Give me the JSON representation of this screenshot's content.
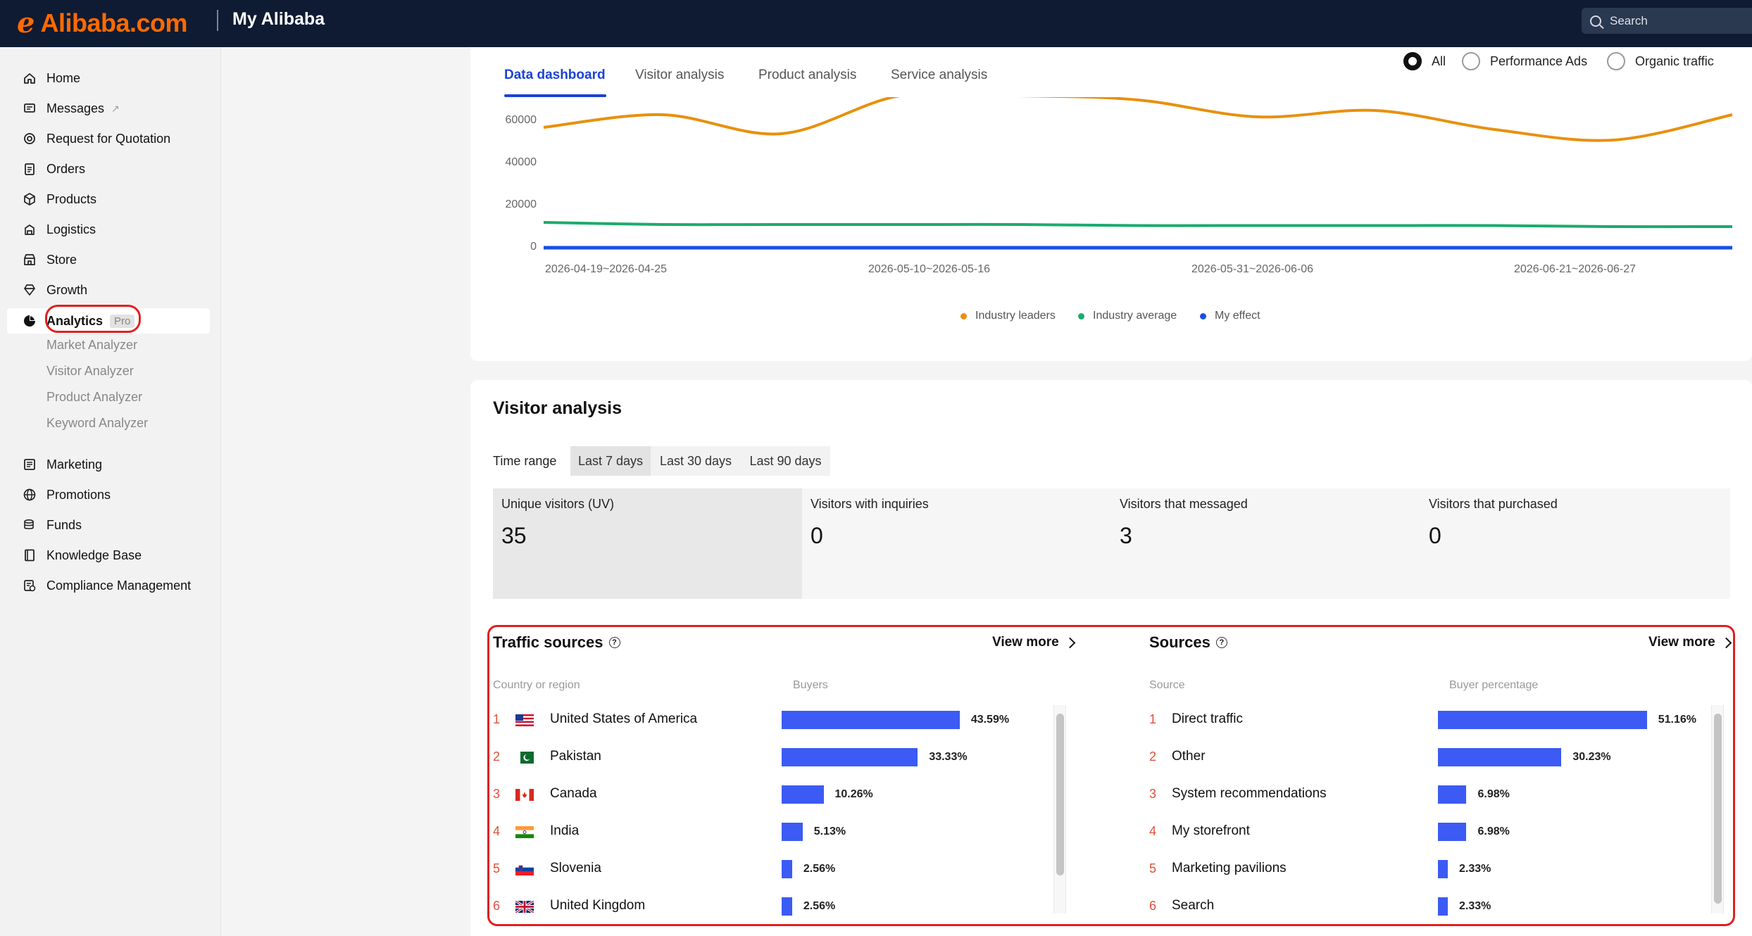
{
  "header": {
    "logo": "Alibaba.com",
    "title": "My Alibaba",
    "search_placeholder": "Search"
  },
  "sidebar": {
    "items": [
      {
        "label": "Home",
        "icon": "home-icon"
      },
      {
        "label": "Messages",
        "icon": "message-icon",
        "external": "↗"
      },
      {
        "label": "Request for Quotation",
        "icon": "target-icon"
      },
      {
        "label": "Orders",
        "icon": "clipboard-icon"
      },
      {
        "label": "Products",
        "icon": "box-icon"
      },
      {
        "label": "Logistics",
        "icon": "truck-icon"
      },
      {
        "label": "Store",
        "icon": "store-icon"
      },
      {
        "label": "Growth",
        "icon": "diamond-icon"
      },
      {
        "label": "Analytics",
        "icon": "pie-chart-icon",
        "badge": "Pro",
        "active": true
      },
      {
        "label": "Marketing",
        "icon": "marketing-icon"
      },
      {
        "label": "Promotions",
        "icon": "globe-icon"
      },
      {
        "label": "Funds",
        "icon": "coins-icon"
      },
      {
        "label": "Knowledge Base",
        "icon": "book-icon"
      },
      {
        "label": "Compliance Management",
        "icon": "compliance-icon"
      }
    ],
    "analytics_sub": [
      "Market Analyzer",
      "Visitor Analyzer",
      "Product Analyzer",
      "Keyword Analyzer"
    ]
  },
  "tabs": [
    "Data dashboard",
    "Visitor analysis",
    "Product analysis",
    "Service analysis"
  ],
  "active_tab": "Data dashboard",
  "traffic_filter": {
    "options": [
      "All",
      "Performance Ads",
      "Organic traffic"
    ],
    "selected": "All"
  },
  "chart_data": {
    "type": "line",
    "y_ticks": [
      "60000",
      "40000",
      "20000",
      "0"
    ],
    "ylim": [
      0,
      60000
    ],
    "x_tick_labels": [
      "2026-04-19~2026-04-25",
      "2026-05-10~2026-05-16",
      "2026-05-31~2026-06-06",
      "2026-06-21~2026-06-27"
    ],
    "x_weeks": [
      "2026-04-19",
      "2026-04-26",
      "2026-05-03",
      "2026-05-10",
      "2026-05-17",
      "2026-05-24",
      "2026-05-31",
      "2026-06-07",
      "2026-06-14",
      "2026-06-21",
      "2026-06-28"
    ],
    "series": [
      {
        "name": "Industry leaders",
        "color": "#e8900e",
        "values": [
          57000,
          63000,
          54000,
          72000,
          72000,
          70000,
          62000,
          65000,
          56000,
          51000,
          63000
        ]
      },
      {
        "name": "Industry average",
        "color": "#1bab6c",
        "values": [
          12000,
          11000,
          11000,
          11000,
          11000,
          10500,
          10500,
          10500,
          10500,
          10000,
          10000
        ]
      },
      {
        "name": "My effect",
        "color": "#1a4fe0",
        "values": [
          0,
          0,
          0,
          0,
          0,
          0,
          0,
          0,
          0,
          0,
          0
        ]
      }
    ],
    "grid": false,
    "legend_position": "bottom"
  },
  "visitor_analysis": {
    "title": "Visitor analysis",
    "time_range_label": "Time range",
    "time_ranges": [
      "Last 7 days",
      "Last 30 days",
      "Last 90 days"
    ],
    "selected_range": "Last 7 days",
    "stats": [
      {
        "label": "Unique visitors (UV)",
        "value": "35"
      },
      {
        "label": "Visitors with inquiries",
        "value": "0"
      },
      {
        "label": "Visitors that messaged",
        "value": "3"
      },
      {
        "label": "Visitors that purchased",
        "value": "0"
      }
    ]
  },
  "traffic_sources": {
    "title": "Traffic sources",
    "view_more": "View more",
    "col1": "Country or region",
    "col2": "Buyers",
    "rows": [
      {
        "idx": "1",
        "name": "United States of America",
        "flag": "us-flag-icon",
        "pct": "43.59%",
        "value": 43.59
      },
      {
        "idx": "2",
        "name": "Pakistan",
        "flag": "pk-flag-icon",
        "pct": "33.33%",
        "value": 33.33
      },
      {
        "idx": "3",
        "name": "Canada",
        "flag": "ca-flag-icon",
        "pct": "10.26%",
        "value": 10.26
      },
      {
        "idx": "4",
        "name": "India",
        "flag": "in-flag-icon",
        "pct": "5.13%",
        "value": 5.13
      },
      {
        "idx": "5",
        "name": "Slovenia",
        "flag": "si-flag-icon",
        "pct": "2.56%",
        "value": 2.56
      },
      {
        "idx": "6",
        "name": "United Kingdom",
        "flag": "gb-flag-icon",
        "pct": "2.56%",
        "value": 2.56
      }
    ]
  },
  "sources": {
    "title": "Sources",
    "view_more": "View more",
    "col1": "Source",
    "col2": "Buyer percentage",
    "rows": [
      {
        "idx": "1",
        "name": "Direct traffic",
        "pct": "51.16%",
        "value": 51.16
      },
      {
        "idx": "2",
        "name": "Other",
        "pct": "30.23%",
        "value": 30.23
      },
      {
        "idx": "3",
        "name": "System recommendations",
        "pct": "6.98%",
        "value": 6.98
      },
      {
        "idx": "4",
        "name": "My storefront",
        "pct": "6.98%",
        "value": 6.98
      },
      {
        "idx": "5",
        "name": "Marketing pavilions",
        "pct": "2.33%",
        "value": 2.33
      },
      {
        "idx": "6",
        "name": "Search",
        "pct": "2.33%",
        "value": 2.33
      }
    ]
  }
}
